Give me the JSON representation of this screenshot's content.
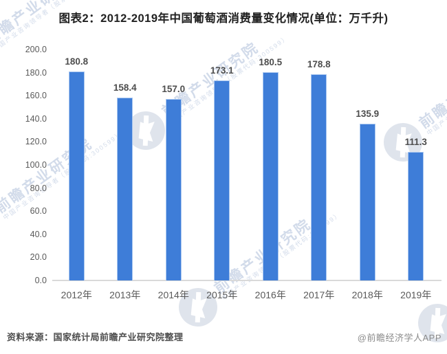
{
  "title": "图表2：2012-2019年中国葡萄酒消费量变化情况(单位：万千升)",
  "chart_data": {
    "type": "bar",
    "title": "图表2：2012-2019年中国葡萄酒消费量变化情况(单位：万千升)",
    "categories": [
      "2012年",
      "2013年",
      "2014年",
      "2015年",
      "2016年",
      "2017年",
      "2018年",
      "2019年"
    ],
    "values": [
      180.8,
      158.4,
      157.0,
      173.1,
      180.5,
      178.8,
      135.9,
      111.3
    ],
    "unit": "万千升",
    "ylim": [
      0,
      200
    ],
    "ytick_step": 20,
    "ytick_labels": [
      "200.0",
      "180.0",
      "160.0",
      "140.0",
      "120.0",
      "100.0",
      "80.0",
      "60.0",
      "40.0",
      "20.0",
      "0.0"
    ],
    "grid": false,
    "legend": null,
    "bar_color": "#3e7dd8"
  },
  "watermark": {
    "brand": "前瞻产业研究院",
    "tagline": "中国产业咨询领导者（股票代码:300599）"
  },
  "footer": {
    "source": "资料来源：国家统计局前瞻产业研究院整理",
    "credit": "@前瞻经济学人APP"
  }
}
